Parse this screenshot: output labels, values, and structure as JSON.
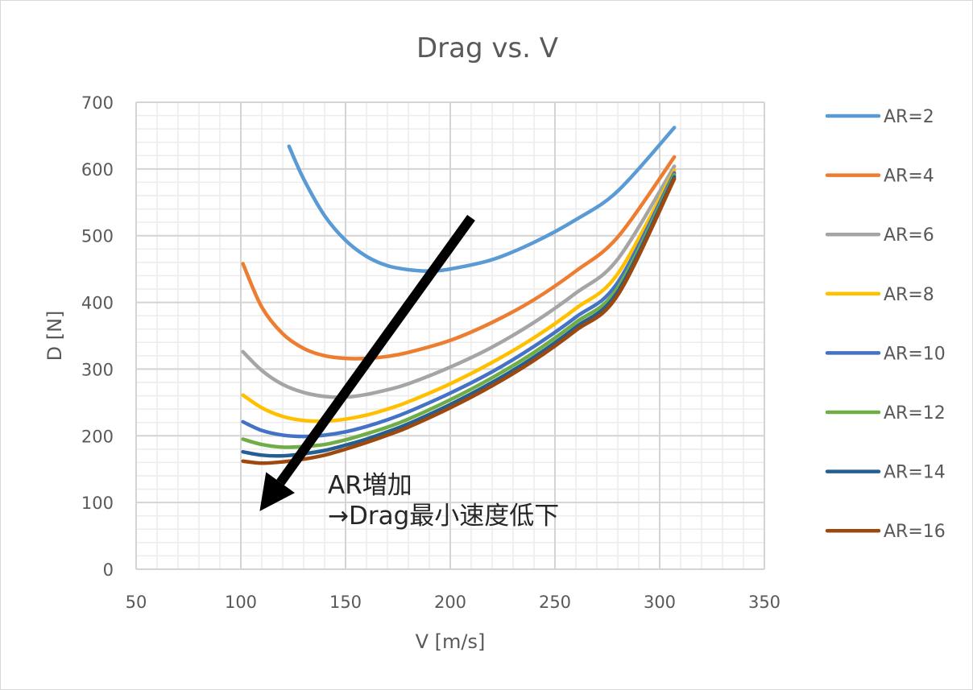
{
  "chart_data": {
    "type": "line",
    "title": "Drag vs. V",
    "xlabel": "V [m/s]",
    "ylabel": "D [N]",
    "xlim": [
      50,
      350
    ],
    "ylim": [
      0,
      700
    ],
    "x_ticks": [
      50,
      100,
      150,
      200,
      250,
      300,
      350
    ],
    "y_ticks": [
      0,
      100,
      200,
      300,
      400,
      500,
      600,
      700
    ],
    "grid": "major and minor",
    "legend_position": "right",
    "series": [
      {
        "name": "AR=2",
        "color": "#5B9BD5",
        "points": [
          [
            123,
            634
          ],
          [
            130,
            585
          ],
          [
            140,
            530
          ],
          [
            150,
            493
          ],
          [
            160,
            469
          ],
          [
            170,
            455
          ],
          [
            180,
            449
          ],
          [
            190,
            447
          ],
          [
            200,
            450
          ],
          [
            220,
            464
          ],
          [
            240,
            490
          ],
          [
            260,
            524
          ],
          [
            280,
            567
          ],
          [
            307,
            662
          ]
        ]
      },
      {
        "name": "AR=4",
        "color": "#ED7D31",
        "points": [
          [
            101,
            458
          ],
          [
            110,
            393
          ],
          [
            120,
            353
          ],
          [
            130,
            331
          ],
          [
            140,
            320
          ],
          [
            150,
            316
          ],
          [
            160,
            316
          ],
          [
            170,
            319
          ],
          [
            180,
            325
          ],
          [
            200,
            343
          ],
          [
            220,
            370
          ],
          [
            240,
            404
          ],
          [
            260,
            447
          ],
          [
            280,
            498
          ],
          [
            307,
            618
          ]
        ]
      },
      {
        "name": "AR=6",
        "color": "#A5A5A5",
        "points": [
          [
            101,
            326
          ],
          [
            110,
            298
          ],
          [
            120,
            277
          ],
          [
            130,
            265
          ],
          [
            140,
            259
          ],
          [
            150,
            258
          ],
          [
            160,
            262
          ],
          [
            170,
            269
          ],
          [
            180,
            278
          ],
          [
            200,
            303
          ],
          [
            220,
            333
          ],
          [
            240,
            370
          ],
          [
            260,
            414
          ],
          [
            280,
            465
          ],
          [
            307,
            604
          ]
        ]
      },
      {
        "name": "AR=8",
        "color": "#FFC000",
        "points": [
          [
            101,
            261
          ],
          [
            110,
            242
          ],
          [
            120,
            229
          ],
          [
            130,
            223
          ],
          [
            140,
            222
          ],
          [
            150,
            225
          ],
          [
            160,
            231
          ],
          [
            170,
            240
          ],
          [
            180,
            251
          ],
          [
            200,
            278
          ],
          [
            220,
            310
          ],
          [
            240,
            347
          ],
          [
            260,
            391
          ],
          [
            280,
            443
          ],
          [
            307,
            598
          ]
        ]
      },
      {
        "name": "AR=10",
        "color": "#4472C4",
        "points": [
          [
            101,
            221
          ],
          [
            110,
            208
          ],
          [
            120,
            201
          ],
          [
            130,
            199
          ],
          [
            140,
            201
          ],
          [
            150,
            206
          ],
          [
            160,
            214
          ],
          [
            170,
            224
          ],
          [
            180,
            236
          ],
          [
            200,
            264
          ],
          [
            220,
            296
          ],
          [
            240,
            334
          ],
          [
            260,
            378
          ],
          [
            280,
            430
          ],
          [
            307,
            594
          ]
        ]
      },
      {
        "name": "AR=12",
        "color": "#70AD47",
        "points": [
          [
            101,
            195
          ],
          [
            110,
            187
          ],
          [
            120,
            183
          ],
          [
            130,
            184
          ],
          [
            140,
            187
          ],
          [
            150,
            194
          ],
          [
            160,
            203
          ],
          [
            170,
            213
          ],
          [
            180,
            225
          ],
          [
            200,
            254
          ],
          [
            220,
            287
          ],
          [
            240,
            325
          ],
          [
            260,
            370
          ],
          [
            280,
            422
          ],
          [
            307,
            591
          ]
        ]
      },
      {
        "name": "AR=14",
        "color": "#255E91",
        "points": [
          [
            101,
            176
          ],
          [
            110,
            171
          ],
          [
            120,
            170
          ],
          [
            130,
            173
          ],
          [
            140,
            178
          ],
          [
            150,
            186
          ],
          [
            160,
            195
          ],
          [
            170,
            206
          ],
          [
            180,
            218
          ],
          [
            200,
            247
          ],
          [
            220,
            280
          ],
          [
            240,
            318
          ],
          [
            260,
            363
          ],
          [
            280,
            416
          ],
          [
            307,
            588
          ]
        ]
      },
      {
        "name": "AR=16",
        "color": "#9E480E",
        "points": [
          [
            101,
            162
          ],
          [
            110,
            159
          ],
          [
            120,
            161
          ],
          [
            130,
            165
          ],
          [
            140,
            171
          ],
          [
            150,
            180
          ],
          [
            160,
            190
          ],
          [
            170,
            201
          ],
          [
            180,
            213
          ],
          [
            200,
            242
          ],
          [
            220,
            275
          ],
          [
            240,
            313
          ],
          [
            260,
            358
          ],
          [
            280,
            411
          ],
          [
            307,
            585
          ]
        ]
      }
    ],
    "annotation": {
      "lines": [
        "AR増加",
        "→Drag最小速度低下"
      ],
      "arrow": {
        "from": [
          210,
          527
        ],
        "to": [
          109,
          87
        ]
      }
    }
  }
}
